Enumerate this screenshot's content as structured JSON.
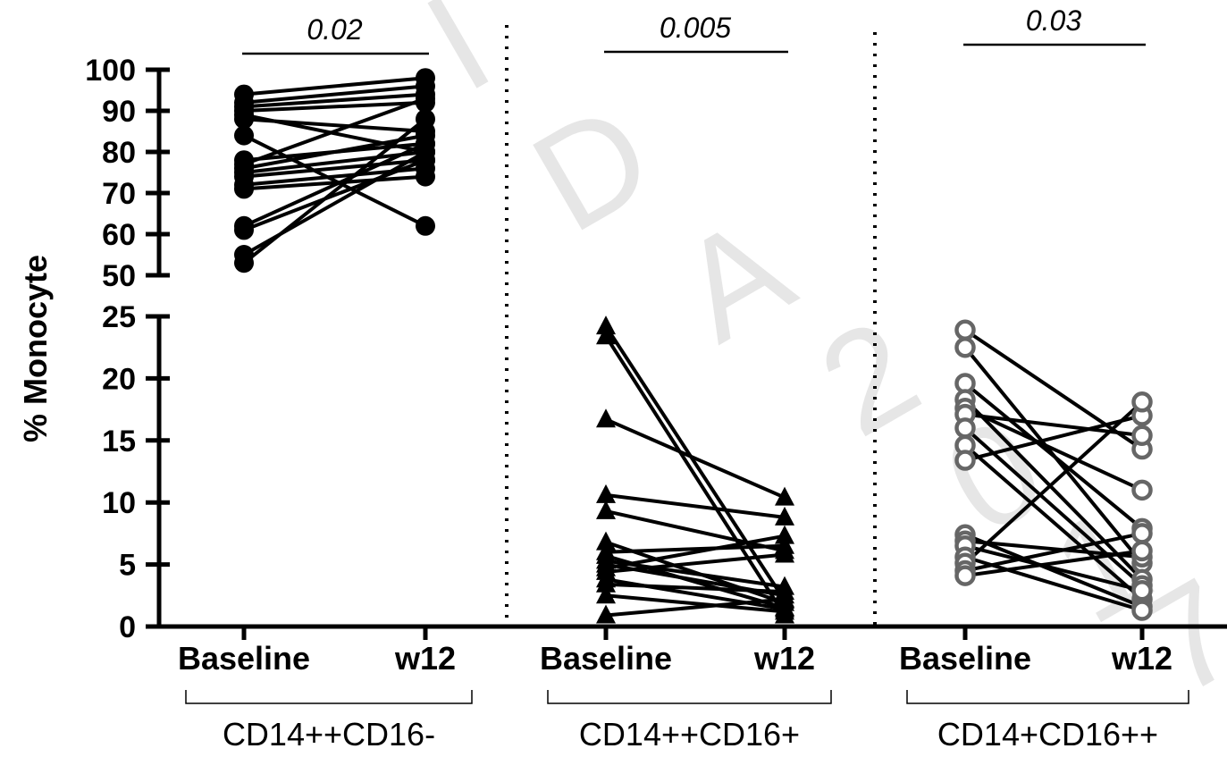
{
  "chart_data": {
    "type": "scatter",
    "ylabel": "% Monocyte",
    "y_axis_segments": [
      {
        "range": [
          0,
          25
        ],
        "ticks": [
          "0",
          "5",
          "10",
          "15",
          "20",
          "25"
        ]
      },
      {
        "range": [
          50,
          100
        ],
        "ticks": [
          "50",
          "60",
          "70",
          "80",
          "90",
          "100"
        ]
      }
    ],
    "x_tick_labels": [
      "Baseline",
      "w12"
    ],
    "watermark": [
      "I",
      "D",
      "A",
      "2",
      "0",
      "1",
      "7"
    ],
    "groups": [
      {
        "name": "CD14++CD16-",
        "marker": "filled-circle",
        "color": "#000000",
        "p_value": "0.02",
        "pairs": [
          [
            94,
            98
          ],
          [
            92,
            96
          ],
          [
            91,
            94
          ],
          [
            90,
            92
          ],
          [
            89,
            80
          ],
          [
            88,
            85
          ],
          [
            84,
            62
          ],
          [
            78,
            82
          ],
          [
            77,
            93
          ],
          [
            76,
            84
          ],
          [
            75,
            80
          ],
          [
            74,
            78
          ],
          [
            72,
            76
          ],
          [
            71,
            74
          ],
          [
            62,
            82
          ],
          [
            61,
            78
          ],
          [
            55,
            80
          ],
          [
            53,
            88
          ]
        ]
      },
      {
        "name": "CD14++CD16+",
        "marker": "filled-triangle",
        "color": "#000000",
        "p_value": "0.005",
        "pairs": [
          [
            24.2,
            2.1
          ],
          [
            23.4,
            0.9
          ],
          [
            16.7,
            10.4
          ],
          [
            10.6,
            8.8
          ],
          [
            9.3,
            6.1
          ],
          [
            6.8,
            1.9
          ],
          [
            6.0,
            6.5
          ],
          [
            5.7,
            1.5
          ],
          [
            5.3,
            3.2
          ],
          [
            5.0,
            2.5
          ],
          [
            4.7,
            7.3
          ],
          [
            4.4,
            5.8
          ],
          [
            3.8,
            1.4
          ],
          [
            3.4,
            2.8
          ],
          [
            2.5,
            1.2
          ],
          [
            0.9,
            2.2
          ]
        ]
      },
      {
        "name": "CD14+CD16++",
        "marker": "open-circle",
        "color": "#666666",
        "p_value": "0.03",
        "pairs": [
          [
            23.9,
            14.3
          ],
          [
            22.5,
            5.1
          ],
          [
            19.6,
            7.9
          ],
          [
            18.3,
            3.8
          ],
          [
            17.6,
            11.0
          ],
          [
            17.1,
            15.4
          ],
          [
            16.0,
            3.3
          ],
          [
            14.6,
            2.2
          ],
          [
            13.4,
            17.0
          ],
          [
            7.4,
            1.6
          ],
          [
            6.9,
            5.6
          ],
          [
            6.5,
            2.9
          ],
          [
            5.6,
            1.3
          ],
          [
            5.1,
            18.1
          ],
          [
            4.5,
            7.5
          ],
          [
            4.1,
            6.1
          ]
        ]
      }
    ]
  }
}
